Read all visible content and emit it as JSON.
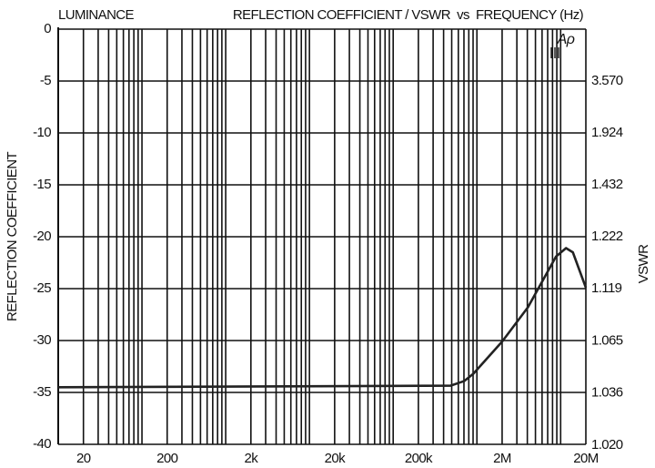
{
  "chart_data": {
    "type": "line",
    "title": "REFLECTION COEFFICIENT / VSWR  vs  FREQUENCY (Hz)",
    "subtitle": "LUMINANCE",
    "y_label": "REFLECTION COEFFICIENT",
    "y2_label": "VSWR",
    "annotation": "Aρ",
    "x_scale": "log",
    "xlim": [
      10,
      20000000
    ],
    "xticks": [
      20,
      200,
      {
        "value": 2000,
        "label": "2k"
      },
      {
        "value": 20000,
        "label": "20k"
      },
      {
        "value": 200000,
        "label": "200k"
      },
      {
        "value": 2000000,
        "label": "2M"
      },
      {
        "value": 20000000,
        "label": "20M"
      }
    ],
    "x_minor_ticks": [
      10,
      30,
      40,
      50,
      60,
      70,
      80,
      90,
      100,
      300,
      400,
      500,
      600,
      700,
      800,
      900,
      1000,
      3000,
      4000,
      5000,
      6000,
      7000,
      8000,
      9000,
      10000,
      30000,
      40000,
      50000,
      60000,
      70000,
      80000,
      90000,
      100000,
      300000,
      400000,
      500000,
      600000,
      700000,
      800000,
      900000,
      1000000,
      3000000,
      4000000,
      5000000,
      6000000,
      7000000,
      8000000,
      9000000,
      10000000
    ],
    "ylim": [
      -40,
      0
    ],
    "yticks": [
      0,
      -5,
      -10,
      -15,
      -20,
      -25,
      -30,
      -35,
      -40
    ],
    "y2_scale": "vswr",
    "y2ticks": [
      {
        "value": 3.57,
        "label": "3.570"
      },
      1.924,
      1.432,
      1.222,
      1.119,
      1.065,
      1.036,
      {
        "value": 1.02,
        "label": "1.020"
      }
    ],
    "grid": true,
    "series": [
      {
        "name": "Aρ",
        "color": "#222222",
        "x": [
          10,
          484000,
          705000,
          906000,
          2000000,
          4060000,
          8800000,
          11600000,
          14000000,
          20000000
        ],
        "values": [
          -34.5,
          -34.35,
          -33.9,
          -33.2,
          -30.1,
          -26.8,
          -21.9,
          -21.1,
          -21.5,
          -24.9
        ]
      }
    ]
  }
}
